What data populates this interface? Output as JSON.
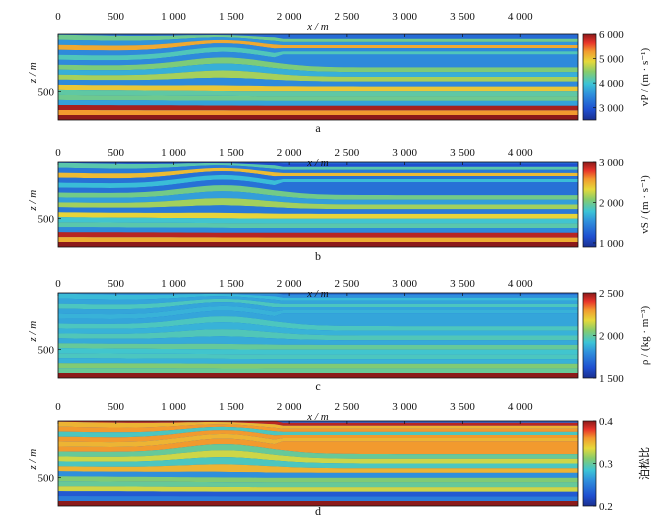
{
  "chart_data": [
    {
      "type": "heatmap",
      "panel_label": "a",
      "xlabel": "x / m",
      "ylabel": "z / m",
      "xlim": [
        0,
        4500
      ],
      "zlim": [
        0,
        750
      ],
      "xticks": [
        {
          "v": 0,
          "t": "0"
        },
        {
          "v": 500,
          "t": "500"
        },
        {
          "v": 1000,
          "t": "1 000"
        },
        {
          "v": 1500,
          "t": "1 500"
        },
        {
          "v": 2000,
          "t": "2 000"
        },
        {
          "v": 2500,
          "t": "2 500"
        },
        {
          "v": 3000,
          "t": "3 000"
        },
        {
          "v": 3500,
          "t": "3 500"
        },
        {
          "v": 4000,
          "t": "4 000"
        }
      ],
      "yticks": [
        {
          "v": 500,
          "t": "500"
        }
      ],
      "colorbar": {
        "label": "vP / (m · s⁻¹)",
        "range": [
          2500,
          6000
        ],
        "ticks": [
          {
            "v": 3000,
            "t": "3 000"
          },
          {
            "v": 4000,
            "t": "4 000"
          },
          {
            "v": 5000,
            "t": "5 000"
          },
          {
            "v": 6000,
            "t": "6 000"
          }
        ]
      },
      "layer_values": [
        3200,
        4300,
        3600,
        5200,
        3500,
        4100,
        3500,
        4400,
        3800,
        4600,
        3500,
        5000,
        4200,
        4300,
        3700,
        5900,
        5300,
        6000
      ]
    },
    {
      "type": "heatmap",
      "panel_label": "b",
      "xlabel": "x / m",
      "ylabel": "z / m",
      "xlim": [
        0,
        4500
      ],
      "zlim": [
        0,
        750
      ],
      "xticks": [
        {
          "v": 0,
          "t": "0"
        },
        {
          "v": 500,
          "t": "500"
        },
        {
          "v": 1000,
          "t": "1 000"
        },
        {
          "v": 1500,
          "t": "1 500"
        },
        {
          "v": 2000,
          "t": "2 000"
        },
        {
          "v": 2500,
          "t": "2 500"
        },
        {
          "v": 3000,
          "t": "3 000"
        },
        {
          "v": 3500,
          "t": "3 500"
        },
        {
          "v": 4000,
          "t": "4 000"
        }
      ],
      "yticks": [
        {
          "v": 500,
          "t": "500"
        }
      ],
      "colorbar": {
        "label": "vS / (m · s⁻¹)",
        "range": [
          900,
          3000
        ],
        "ticks": [
          {
            "v": 1000,
            "t": "1 000"
          },
          {
            "v": 2000,
            "t": "2 000"
          },
          {
            "v": 3000,
            "t": "3 000"
          }
        ]
      },
      "layer_values": [
        1150,
        1900,
        1400,
        2450,
        1350,
        1750,
        1350,
        2000,
        1600,
        2150,
        1400,
        2350,
        1800,
        1900,
        1500,
        2900,
        2500,
        3000
      ]
    },
    {
      "type": "heatmap",
      "panel_label": "c",
      "xlabel": "x / m",
      "ylabel": "z / m",
      "xlim": [
        0,
        4500
      ],
      "zlim": [
        0,
        750
      ],
      "xticks": [
        {
          "v": 0,
          "t": "0"
        },
        {
          "v": 500,
          "t": "500"
        },
        {
          "v": 1000,
          "t": "1 000"
        },
        {
          "v": 1500,
          "t": "1 500"
        },
        {
          "v": 2000,
          "t": "2 000"
        },
        {
          "v": 2500,
          "t": "2 500"
        },
        {
          "v": 3000,
          "t": "3 000"
        },
        {
          "v": 3500,
          "t": "3 500"
        },
        {
          "v": 4000,
          "t": "4 000"
        }
      ],
      "yticks": [
        {
          "v": 500,
          "t": "500"
        }
      ],
      "colorbar": {
        "label": "ρ / (kg · m⁻³)",
        "range": [
          1500,
          2500
        ],
        "ticks": [
          {
            "v": 1500,
            "t": "1 500"
          },
          {
            "v": 2000,
            "t": "2 000"
          },
          {
            "v": 2500,
            "t": "2 500"
          }
        ]
      },
      "layer_values": [
        1800,
        1900,
        1850,
        1950,
        1850,
        1880,
        1850,
        1950,
        1880,
        1960,
        1860,
        2000,
        1930,
        1950,
        1880,
        2050,
        2000,
        2060
      ]
    },
    {
      "type": "heatmap",
      "panel_label": "d",
      "xlabel": "x / m",
      "ylabel": "z / m",
      "xlim": [
        0,
        4500
      ],
      "zlim": [
        0,
        750
      ],
      "xticks": [
        {
          "v": 0,
          "t": "0"
        },
        {
          "v": 500,
          "t": "500"
        },
        {
          "v": 1000,
          "t": "1 000"
        },
        {
          "v": 1500,
          "t": "1 500"
        },
        {
          "v": 2000,
          "t": "2 000"
        },
        {
          "v": 2500,
          "t": "2 500"
        },
        {
          "v": 3000,
          "t": "3 000"
        },
        {
          "v": 3500,
          "t": "3 500"
        },
        {
          "v": 4000,
          "t": "4 000"
        }
      ],
      "yticks": [
        {
          "v": 500,
          "t": "500"
        }
      ],
      "colorbar": {
        "label": "泊松比",
        "range": [
          0.2,
          0.4
        ],
        "ticks": [
          {
            "v": 0.2,
            "t": "0.2"
          },
          {
            "v": 0.3,
            "t": "0.3"
          },
          {
            "v": 0.4,
            "t": "0.4"
          }
        ]
      },
      "layer_values": [
        0.39,
        0.35,
        0.36,
        0.29,
        0.36,
        0.35,
        0.36,
        0.3,
        0.33,
        0.29,
        0.35,
        0.26,
        0.31,
        0.3,
        0.33,
        0.23,
        0.25,
        0.22
      ]
    }
  ]
}
